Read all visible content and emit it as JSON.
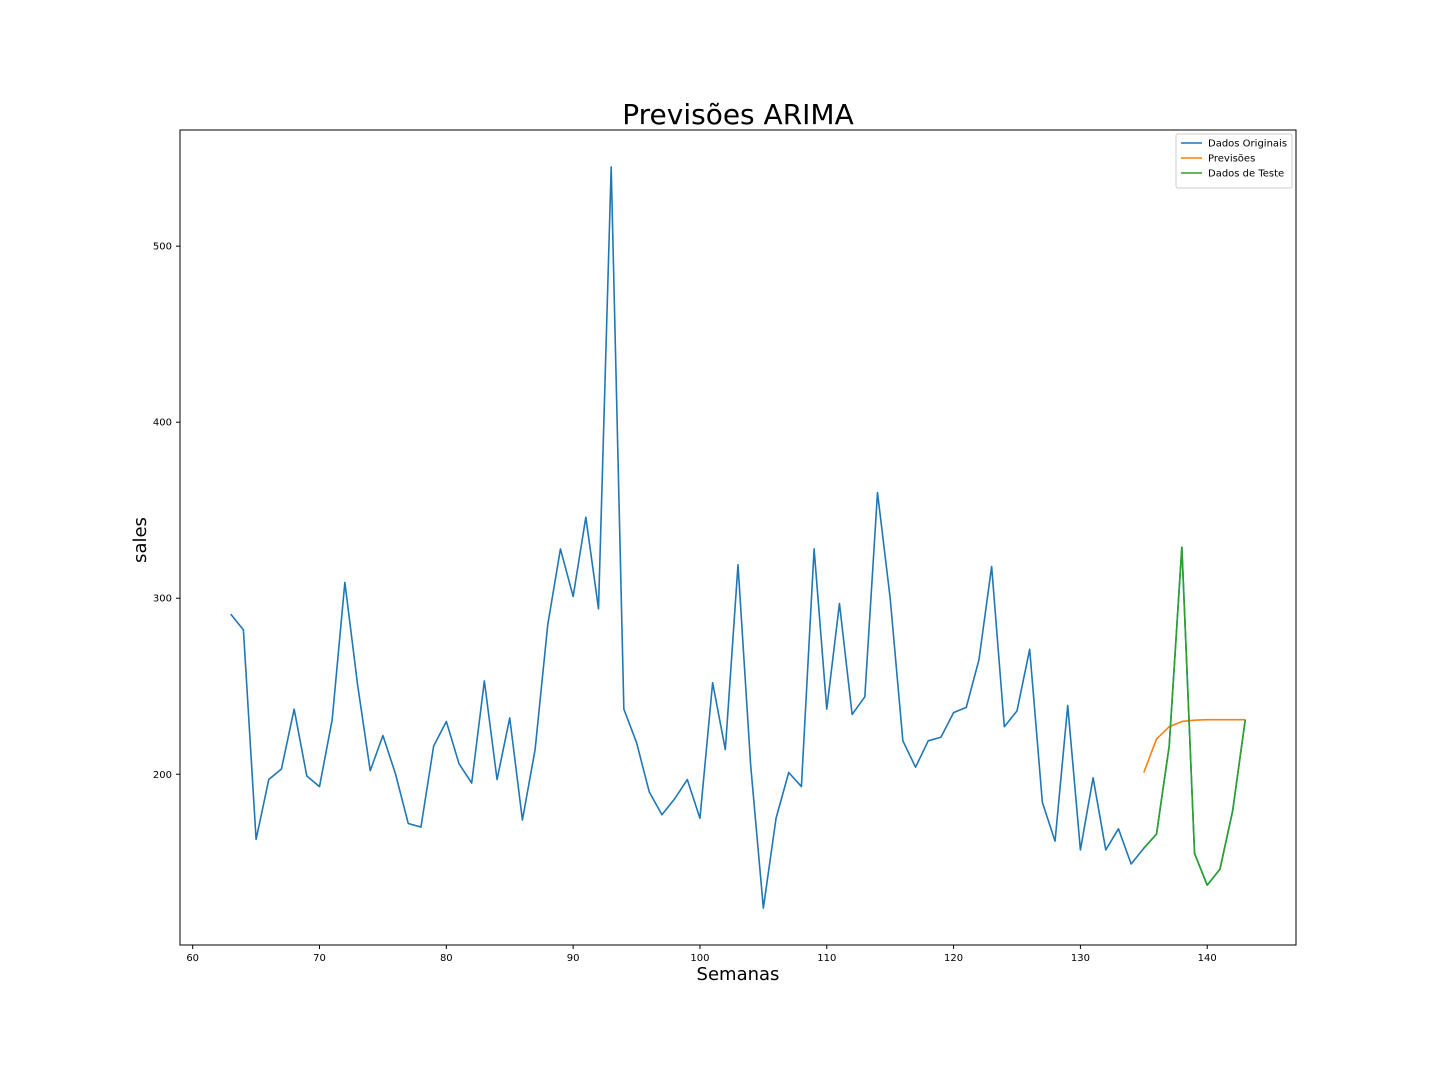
{
  "chart_data": {
    "type": "line",
    "title": "Previsões ARIMA",
    "xlabel": "Semanas",
    "ylabel": "sales",
    "xlim": [
      59.0,
      147.0
    ],
    "ylim": [
      103,
      566
    ],
    "xticks": [
      60,
      70,
      80,
      90,
      100,
      110,
      120,
      130,
      140
    ],
    "yticks": [
      200,
      300,
      400,
      500
    ],
    "grid": false,
    "legend_position": "top-right",
    "series": [
      {
        "name": "Dados Originais",
        "color": "#1f77b4",
        "x": [
          63,
          64,
          65,
          66,
          67,
          68,
          69,
          70,
          71,
          72,
          73,
          74,
          75,
          76,
          77,
          78,
          79,
          80,
          81,
          82,
          83,
          84,
          85,
          86,
          87,
          88,
          89,
          90,
          91,
          92,
          93,
          94,
          95,
          96,
          97,
          98,
          99,
          100,
          101,
          102,
          103,
          104,
          105,
          106,
          107,
          108,
          109,
          110,
          111,
          112,
          113,
          114,
          115,
          116,
          117,
          118,
          119,
          120,
          121,
          122,
          123,
          124,
          125,
          126,
          127,
          128,
          129,
          130,
          131,
          132,
          133,
          134,
          135,
          136,
          137,
          138,
          139,
          140,
          141,
          142,
          143
        ],
        "y": [
          291,
          282,
          163,
          197,
          203,
          237,
          199,
          193,
          231,
          309,
          251,
          202,
          222,
          200,
          172,
          170,
          216,
          230,
          206,
          195,
          253,
          197,
          232,
          174,
          214,
          285,
          328,
          301,
          346,
          294,
          545,
          237,
          218,
          190,
          177,
          186,
          197,
          175,
          252,
          214,
          319,
          205,
          124,
          175,
          201,
          193,
          328,
          237,
          297,
          234,
          244,
          360,
          300,
          219,
          204,
          219,
          221,
          235,
          238,
          265,
          318,
          227,
          236,
          271,
          184,
          162,
          239,
          157,
          198,
          157,
          169,
          149,
          158,
          166,
          216,
          329,
          155,
          137,
          146,
          179,
          231
        ]
      },
      {
        "name": "Previsões",
        "color": "#ff7f0e",
        "x": [
          135,
          136,
          137,
          138,
          139,
          140,
          141,
          142,
          143
        ],
        "y": [
          201,
          220,
          227,
          230,
          230.7,
          231,
          231,
          231,
          231
        ]
      },
      {
        "name": "Dados de Teste",
        "color": "#2ca02c",
        "x": [
          135,
          136,
          137,
          138,
          139,
          140,
          141,
          142,
          143
        ],
        "y": [
          158,
          166,
          216,
          329,
          155,
          137,
          146,
          179,
          231
        ]
      }
    ]
  }
}
